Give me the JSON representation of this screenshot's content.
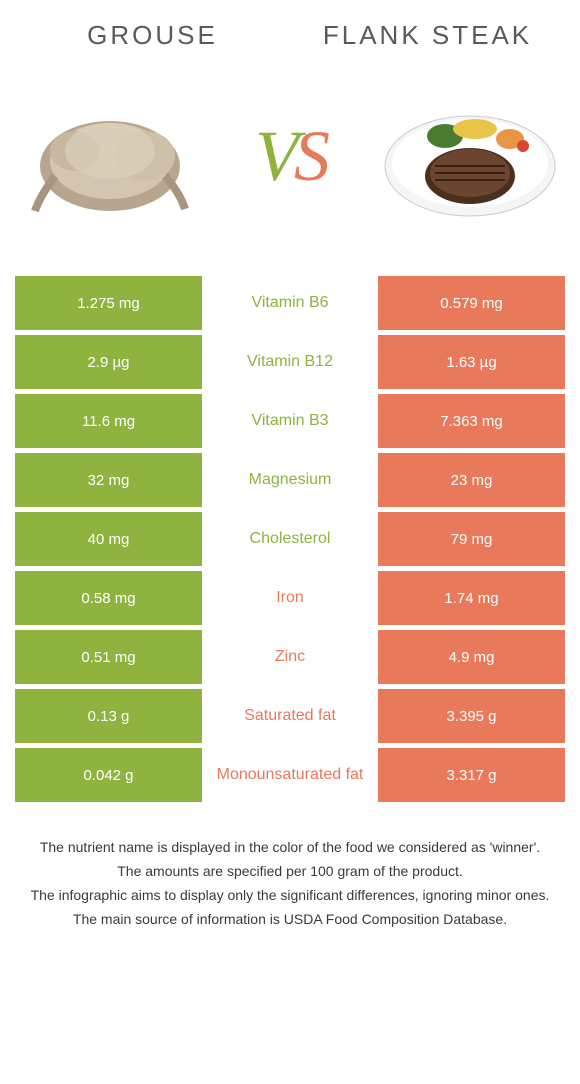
{
  "header": {
    "left_title": "Grouse",
    "right_title": "Flank steak",
    "vs": "VS"
  },
  "colors": {
    "left": "#8fb33f",
    "right": "#e8795a",
    "text": "#5a5a5a"
  },
  "rows": [
    {
      "left": "1.275 mg",
      "label": "Vitamin B6",
      "right": "0.579 mg",
      "winner": "left"
    },
    {
      "left": "2.9 µg",
      "label": "Vitamin B12",
      "right": "1.63 µg",
      "winner": "left"
    },
    {
      "left": "11.6 mg",
      "label": "Vitamin B3",
      "right": "7.363 mg",
      "winner": "left"
    },
    {
      "left": "32 mg",
      "label": "Magnesium",
      "right": "23 mg",
      "winner": "left"
    },
    {
      "left": "40 mg",
      "label": "Cholesterol",
      "right": "79 mg",
      "winner": "left"
    },
    {
      "left": "0.58 mg",
      "label": "Iron",
      "right": "1.74 mg",
      "winner": "right"
    },
    {
      "left": "0.51 mg",
      "label": "Zinc",
      "right": "4.9 mg",
      "winner": "right"
    },
    {
      "left": "0.13 g",
      "label": "Saturated fat",
      "right": "3.395 g",
      "winner": "right"
    },
    {
      "left": "0.042 g",
      "label": "Monounsaturated fat",
      "right": "3.317 g",
      "winner": "right"
    }
  ],
  "notes": [
    "The nutrient name is displayed in the color of the food we considered as 'winner'.",
    "The amounts are specified per 100 gram of the product.",
    "The infographic aims to display only the significant differences, ignoring minor ones.",
    "The main source of information is USDA Food Composition Database."
  ]
}
